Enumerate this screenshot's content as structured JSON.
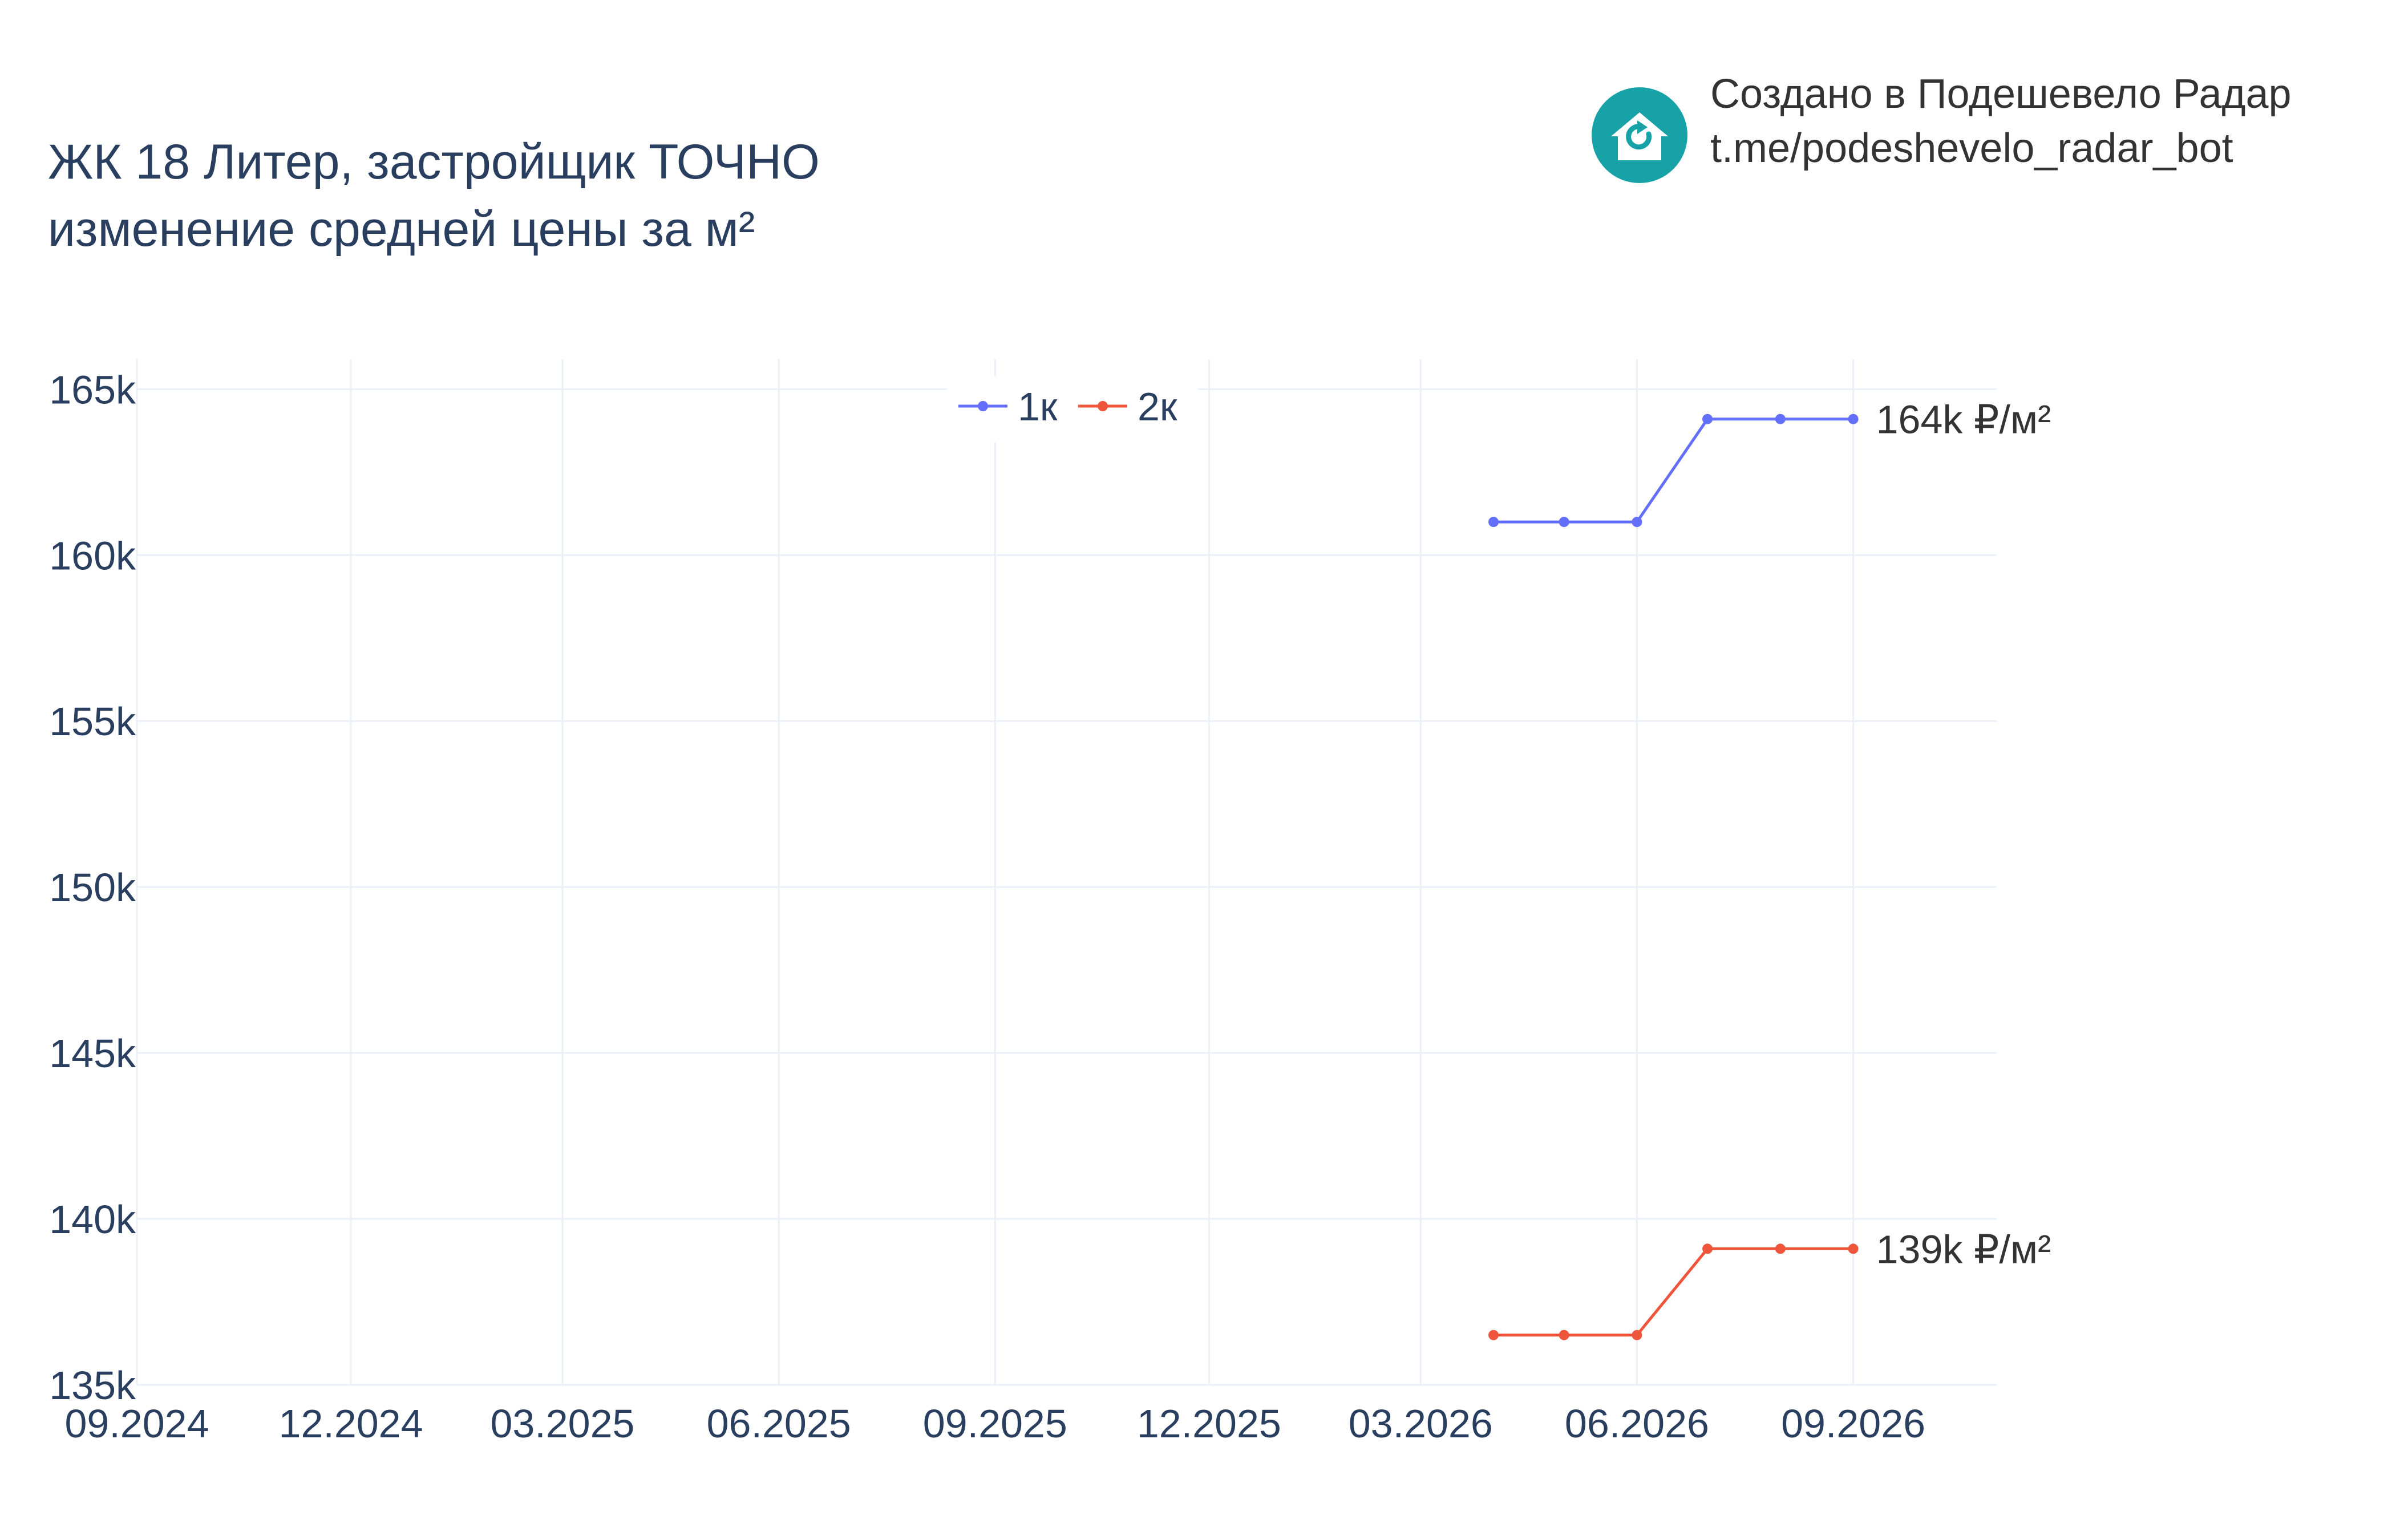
{
  "header": {
    "title_line1": "ЖК 18 Литер, застройщик ТОЧНО",
    "title_line2": "изменение средней цены за м²"
  },
  "branding": {
    "line1": "Создано в Подешевело Радар",
    "line2": "t.me/podeshevelo_radar_bot",
    "logo_icon": "house-refresh-icon",
    "logo_color": "#17a2a8"
  },
  "chart_data": {
    "type": "line",
    "x_ticks": [
      "09.2024",
      "12.2024",
      "03.2025",
      "06.2025",
      "09.2025",
      "12.2025",
      "03.2026",
      "06.2026",
      "09.2026"
    ],
    "x_tick_dates": [
      "2024-09-01",
      "2024-12-01",
      "2025-03-01",
      "2025-06-01",
      "2025-09-01",
      "2025-12-01",
      "2026-03-01",
      "2026-06-01",
      "2026-09-01"
    ],
    "x_range": [
      "2024-09-01",
      "2026-11-01"
    ],
    "y_ticks": [
      135000,
      140000,
      145000,
      150000,
      155000,
      160000,
      165000
    ],
    "y_tick_labels": [
      "135k",
      "140k",
      "145k",
      "150k",
      "155k",
      "160k",
      "165k"
    ],
    "ylim": [
      135000,
      165900
    ],
    "grid": true,
    "legend_position": "top-center",
    "series": [
      {
        "name": "1к",
        "color": "#636efa",
        "x": [
          "2026-04-01",
          "2026-05-01",
          "2026-06-01",
          "2026-07-01",
          "2026-08-01",
          "2026-09-01"
        ],
        "values": [
          161000,
          161000,
          161000,
          164100,
          164100,
          164100
        ],
        "end_label": "164k ₽/м²"
      },
      {
        "name": "2к",
        "color": "#ef553b",
        "x": [
          "2026-04-01",
          "2026-05-01",
          "2026-06-01",
          "2026-07-01",
          "2026-08-01",
          "2026-09-01"
        ],
        "values": [
          136500,
          136500,
          136500,
          139100,
          139100,
          139100
        ],
        "end_label": "139k ₽/м²"
      }
    ]
  }
}
